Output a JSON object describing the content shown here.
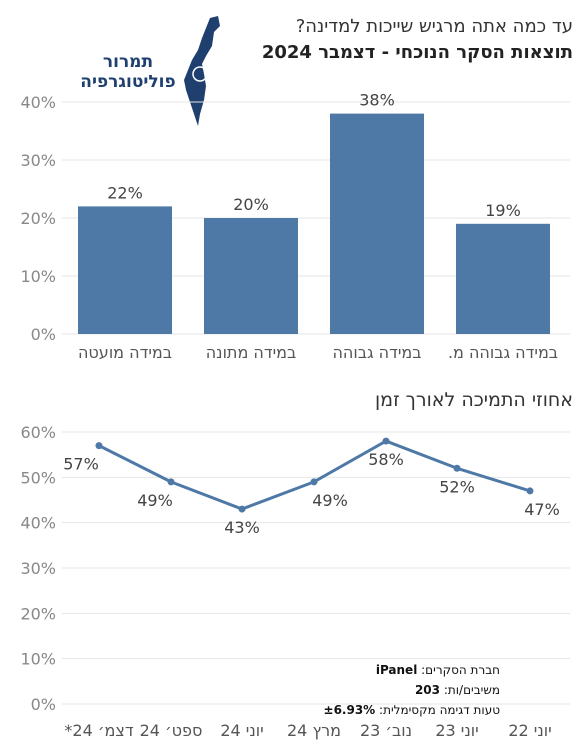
{
  "header": {
    "question": "עד כמה אתה מרגיש שייכות למדינה?",
    "subtitle": "תוצאות הסקר הנוכחי - דצמבר 2024"
  },
  "logo": {
    "line1": "תמרור",
    "line2": "פוליטוגרפיה",
    "color": "#1f3f6e"
  },
  "colors": {
    "bar": "#4e79a7",
    "line": "#4e79a7",
    "grid": "#e6e6e6"
  },
  "chart_data": [
    {
      "type": "bar",
      "categories": [
        "במידה גבוהה מ.",
        "במידה גבוהה",
        "במידה מתונה",
        "במידה מועטה"
      ],
      "values": [
        19,
        38,
        20,
        22
      ],
      "data_labels": [
        "19%",
        "38%",
        "20%",
        "22%"
      ],
      "y_ticks": [
        "40%",
        "30%",
        "20%",
        "10%",
        "0%"
      ],
      "ylim": [
        0,
        42
      ],
      "category_order": "right-to-left",
      "grid": true
    },
    {
      "type": "line",
      "title": "אחוזי התמיכה לאורך זמן",
      "x": [
        "יוני 22",
        "יוני 23",
        "נוב׳ 23",
        "מרץ 24",
        "יוני 24",
        "ספט׳ 24",
        "דצמ׳ 24*"
      ],
      "values": [
        47,
        52,
        58,
        49,
        43,
        49,
        57
      ],
      "data_labels": [
        "47%",
        "52%",
        "58%",
        "49%",
        "43%",
        "49%",
        "57%"
      ],
      "y_ticks": [
        "60%",
        "50%",
        "40%",
        "30%",
        "20%",
        "10%",
        "0%"
      ],
      "ylim": [
        0,
        60
      ],
      "x_order": "right-to-left",
      "grid": true
    }
  ],
  "source": {
    "company_label": "חברת הסקרים:",
    "company": "iPanel",
    "respondents_label": "משיבים/ות:",
    "respondents": "203",
    "error_label": "טעות דגימה מקסימלית:",
    "error": "±6.93%"
  }
}
